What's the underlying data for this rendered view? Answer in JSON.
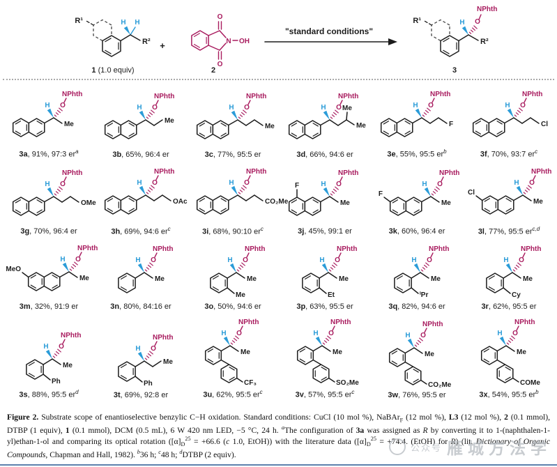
{
  "colors": {
    "blue": "#2b9cd8",
    "magenta": "#a81b5e",
    "bond": "#1c1c1c",
    "divider": "#a9a9a9",
    "rule": "#5d81ad"
  },
  "atoms": {
    "h": "H",
    "o": "O",
    "nphth": "NPhth"
  },
  "scheme": {
    "r1": "R¹",
    "r2": "R²",
    "h": "H",
    "o": "O",
    "n": "N",
    "oh": "OH",
    "nphth": "NPhth",
    "c1_num": "1",
    "c1_rest": " (1.0 equiv)",
    "plus": "+",
    "c2_num": "2",
    "conditions": "\"standard conditions\"",
    "c3_num": "3"
  },
  "compounds": [
    {
      "id": "3a",
      "yield": "91%",
      "er": "97:3 er",
      "note": "a",
      "struct": {
        "type": "naphthyl",
        "chain": {
          "len": 1,
          "end": "Me"
        }
      }
    },
    {
      "id": "3b",
      "yield": "65%",
      "er": "96:4 er",
      "note": "",
      "struct": {
        "type": "naphthyl",
        "chain": {
          "len": 2,
          "end": "Me"
        }
      }
    },
    {
      "id": "3c",
      "yield": "77%",
      "er": "95:5 er",
      "note": "",
      "struct": {
        "type": "naphthyl",
        "chain": {
          "len": 3,
          "end": "Me"
        }
      }
    },
    {
      "id": "3d",
      "yield": "66%",
      "er": "94:6 er",
      "note": "",
      "struct": {
        "type": "naphthyl",
        "chain": {
          "len": 2,
          "end": "Me",
          "branch": "Me"
        }
      }
    },
    {
      "id": "3e",
      "yield": "55%",
      "er": "95:5 er",
      "note": "b",
      "struct": {
        "type": "naphthyl",
        "chain": {
          "len": 3,
          "end": "F"
        }
      }
    },
    {
      "id": "3f",
      "yield": "70%",
      "er": "93:7 er",
      "note": "c",
      "struct": {
        "type": "naphthyl",
        "chain": {
          "len": 3,
          "end": "Cl"
        }
      }
    },
    {
      "id": "3g",
      "yield": "70%",
      "er": "96:4 er",
      "note": "",
      "struct": {
        "type": "naphthyl",
        "chain": {
          "len": 3,
          "end": "OMe"
        }
      }
    },
    {
      "id": "3h",
      "yield": "69%",
      "er": "94:6 er",
      "note": "c",
      "struct": {
        "type": "naphthyl",
        "chain": {
          "len": 3,
          "end": "OAc"
        }
      }
    },
    {
      "id": "3i",
      "yield": "68%",
      "er": "90:10 er",
      "note": "c",
      "struct": {
        "type": "naphthyl",
        "chain": {
          "len": 3,
          "end": "CO₂Me"
        }
      }
    },
    {
      "id": "3j",
      "yield": "45%",
      "er": "99:1 er",
      "note": "",
      "struct": {
        "type": "naphthyl",
        "sub": {
          "pos": "top",
          "label": "F"
        },
        "chain": {
          "len": 1,
          "end": "Me"
        }
      }
    },
    {
      "id": "3k",
      "yield": "60%",
      "er": "96:4 er",
      "note": "",
      "struct": {
        "type": "naphthyl",
        "sub": {
          "pos": "upperleft",
          "label": "F"
        },
        "chain": {
          "len": 1,
          "end": "Me"
        }
      }
    },
    {
      "id": "3l",
      "yield": "77%",
      "er": "95:5 er",
      "note": "c,d",
      "struct": {
        "type": "naphthyl",
        "sub": {
          "pos": "upperleft",
          "label": "Cl"
        },
        "chain": {
          "len": 1,
          "end": "Me"
        }
      }
    },
    {
      "id": "3m",
      "yield": "32%",
      "er": "91:9 er",
      "note": "",
      "struct": {
        "type": "naphthyl",
        "sub": {
          "pos": "upperleft",
          "label": "MeO"
        },
        "chain": {
          "len": 1,
          "end": "Me"
        }
      }
    },
    {
      "id": "3n",
      "yield": "80%",
      "er": "84:16 er",
      "note": "",
      "struct": {
        "type": "phenyl",
        "chain": {
          "len": 1,
          "end": "Me"
        }
      }
    },
    {
      "id": "3o",
      "yield": "50%",
      "er": "94:6 er",
      "note": "",
      "struct": {
        "type": "phenyl",
        "ortho": "Me",
        "chain": {
          "len": 1,
          "end": "Me"
        }
      }
    },
    {
      "id": "3p",
      "yield": "63%",
      "er": "95:5 er",
      "note": "",
      "struct": {
        "type": "phenyl",
        "ortho": "Et",
        "chain": {
          "len": 1,
          "end": "Me"
        }
      }
    },
    {
      "id": "3q",
      "yield": "82%",
      "er": "94:6 er",
      "note": "",
      "struct": {
        "type": "phenyl",
        "ortho": "ⁱPr",
        "chain": {
          "len": 1,
          "end": "Me"
        }
      }
    },
    {
      "id": "3r",
      "yield": "62%",
      "er": "95:5 er",
      "note": "",
      "struct": {
        "type": "phenyl",
        "ortho": "Cy",
        "chain": {
          "len": 1,
          "end": "Me"
        }
      }
    },
    {
      "id": "3s",
      "yield": "88%",
      "er": "95:5 er",
      "note": "d",
      "struct": {
        "type": "phenyl",
        "ortho": "Ph",
        "chain": {
          "len": 1,
          "end": "Me"
        }
      }
    },
    {
      "id": "3t",
      "yield": "69%",
      "er": "92:8 er",
      "note": "",
      "struct": {
        "type": "phenyl",
        "ortho": "Ph",
        "chain": {
          "len": 2,
          "end": "Me"
        }
      }
    },
    {
      "id": "3u",
      "yield": "62%",
      "er": "95:5 er",
      "note": "c",
      "struct": {
        "type": "biphenyl",
        "para": "CF₃",
        "chain": {
          "len": 1,
          "end": "Me"
        }
      }
    },
    {
      "id": "3v",
      "yield": "57%",
      "er": "95:5 er",
      "note": "c",
      "struct": {
        "type": "biphenyl",
        "para": "SO₂Me",
        "chain": {
          "len": 1,
          "end": "Me"
        }
      }
    },
    {
      "id": "3w",
      "yield": "76%",
      "er": "95:5 er",
      "note": "",
      "struct": {
        "type": "biphenyl",
        "para": "CO₂Me",
        "chain": {
          "len": 1,
          "end": "Me"
        }
      }
    },
    {
      "id": "3x",
      "yield": "54%",
      "er": "95:5 er",
      "note": "b",
      "struct": {
        "type": "biphenyl",
        "para": "COMe",
        "chain": {
          "len": 1,
          "end": "Me"
        }
      }
    }
  ],
  "caption": {
    "segments": [
      {
        "t": "Figure 2.",
        "s": "b"
      },
      {
        "t": " Substrate scope of enantioselective benzylic C−H oxidation. Standard conditions: CuCl (10 mol %), NaBAr"
      },
      {
        "t": "F",
        "s": "sub"
      },
      {
        "t": " (12 mol %), "
      },
      {
        "t": "L3",
        "s": "b"
      },
      {
        "t": " (12 mol %), "
      },
      {
        "t": "2",
        "s": "b"
      },
      {
        "t": " (0.1 mmol), DTBP (1 equiv), "
      },
      {
        "t": "1",
        "s": "b"
      },
      {
        "t": " (0.1 mmol), DCM (0.5 mL), 6 W 420 nm LED, −5 °C, 24 h. "
      },
      {
        "t": "a",
        "s": "supi"
      },
      {
        "t": "The configuration of "
      },
      {
        "t": "3a",
        "s": "b"
      },
      {
        "t": " was assigned as "
      },
      {
        "t": "R",
        "s": "i"
      },
      {
        "t": " by converting it to 1-(naphthalen-1-yl)ethan-1-ol and comparing its optical rotation ([α]"
      },
      {
        "t": "D",
        "s": "sub"
      },
      {
        "t": "25",
        "s": "sup"
      },
      {
        "t": " = +66.6 ("
      },
      {
        "t": "c",
        "s": "i"
      },
      {
        "t": " 1.0, EtOH)) with the literature data ([α]"
      },
      {
        "t": "D",
        "s": "sub"
      },
      {
        "t": "25",
        "s": "sup"
      },
      {
        "t": " = +74.4. (EtOH) for "
      },
      {
        "t": "R",
        "s": "i"
      },
      {
        "t": ") (lit. "
      },
      {
        "t": "Dictionary of Organic Compounds",
        "s": "i"
      },
      {
        "t": ", Chapman and Hall, 1982). "
      },
      {
        "t": "b",
        "s": "supi"
      },
      {
        "t": "36 h; "
      },
      {
        "t": "c",
        "s": "supi"
      },
      {
        "t": "48 h; "
      },
      {
        "t": "d",
        "s": "supi"
      },
      {
        "t": "DTBP (2 equiv)."
      }
    ]
  },
  "watermark": {
    "prefix": "公众号",
    "name": "雁城方法学"
  }
}
